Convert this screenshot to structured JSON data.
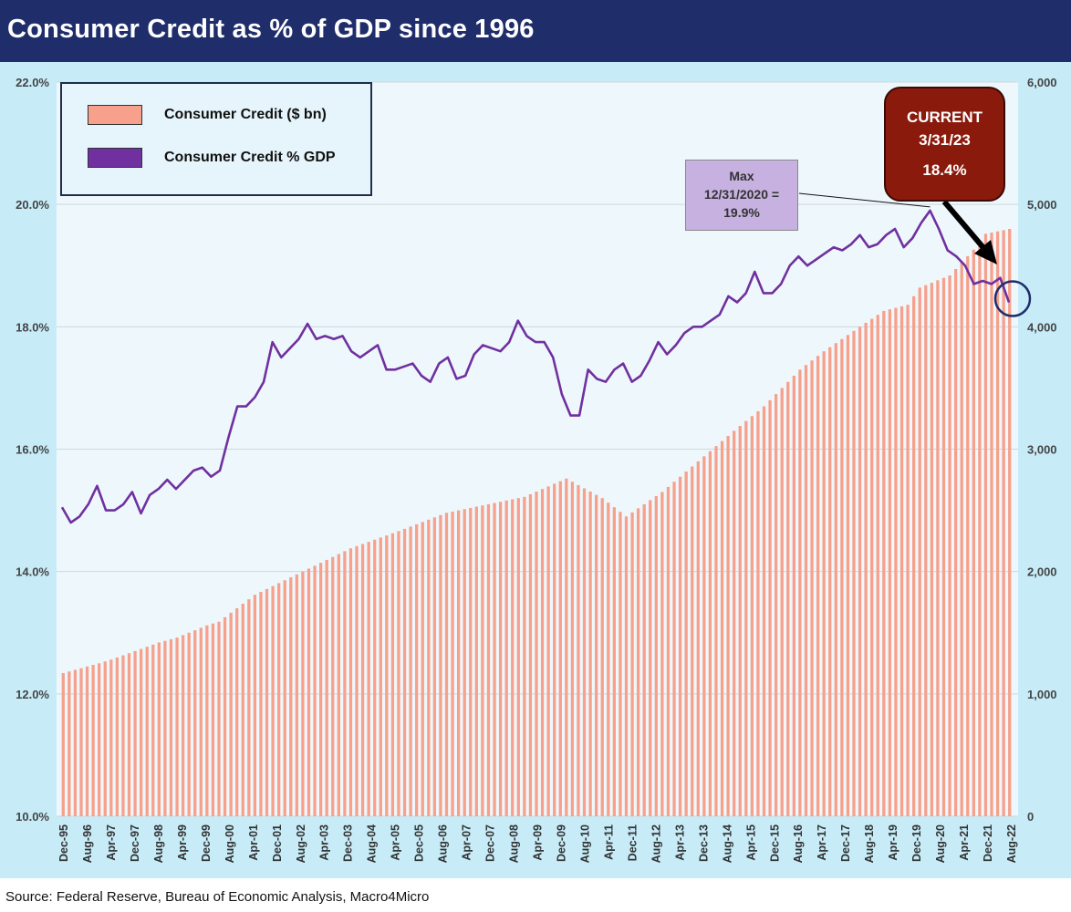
{
  "title": "Consumer Credit as % of GDP since 1996",
  "source": "Source: Federal Reserve, Bureau of Economic Analysis, Macro4Micro",
  "legend": {
    "bar_label": "Consumer Credit ($ bn)",
    "line_label": "Consumer Credit % GDP"
  },
  "annotations": {
    "max": {
      "line1": "Max",
      "line2": "12/31/2020 =",
      "line3": "19.9%"
    },
    "current": {
      "line1": "CURRENT",
      "line2": "3/31/23",
      "line3": "18.4%"
    }
  },
  "colors": {
    "bar": "#f7a08b",
    "line": "#7030a0",
    "title_bg": "#1f2d6b",
    "plot_bg": "#eef8fc",
    "outer_bg": "#c7ecf8",
    "current_bg": "#8a1a0b",
    "max_bg": "#c6b1e0"
  },
  "chart_data": {
    "type": "bar+line",
    "title": "Consumer Credit as % of GDP since 1996",
    "x_ticks": [
      "Dec-95",
      "Aug-96",
      "Apr-97",
      "Dec-97",
      "Aug-98",
      "Apr-99",
      "Dec-99",
      "Aug-00",
      "Apr-01",
      "Dec-01",
      "Aug-02",
      "Apr-03",
      "Dec-03",
      "Aug-04",
      "Apr-05",
      "Dec-05",
      "Aug-06",
      "Apr-07",
      "Dec-07",
      "Aug-08",
      "Apr-09",
      "Dec-09",
      "Aug-10",
      "Apr-11",
      "Dec-11",
      "Aug-12",
      "Apr-13",
      "Dec-13",
      "Aug-14",
      "Apr-15",
      "Dec-15",
      "Aug-16",
      "Apr-17",
      "Dec-17",
      "Aug-18",
      "Apr-19",
      "Dec-19",
      "Aug-20",
      "Apr-21",
      "Dec-21",
      "Aug-22"
    ],
    "left_axis": {
      "label": "Consumer Credit % GDP",
      "min": 10,
      "max": 22,
      "ticks": [
        "10.0%",
        "12.0%",
        "14.0%",
        "16.0%",
        "18.0%",
        "20.0%",
        "22.0%"
      ]
    },
    "right_axis": {
      "label": "Consumer Credit ($ bn)",
      "min": 0,
      "max": 6000,
      "ticks": [
        "0",
        "1,000",
        "2,000",
        "3,000",
        "4,000",
        "5,000",
        "6,000"
      ]
    },
    "series": [
      {
        "name": "Consumer Credit ($ bn)",
        "type": "bar",
        "axis": "right",
        "anchors": [
          [
            0,
            1170
          ],
          [
            6,
            1250
          ],
          [
            8,
            1280
          ],
          [
            12,
            1350
          ],
          [
            16,
            1420
          ],
          [
            19,
            1460
          ],
          [
            24,
            1560
          ],
          [
            26,
            1590
          ],
          [
            32,
            1810
          ],
          [
            40,
            2000
          ],
          [
            48,
            2190
          ],
          [
            56,
            2330
          ],
          [
            64,
            2480
          ],
          [
            72,
            2560
          ],
          [
            77,
            2610
          ],
          [
            84,
            2760
          ],
          [
            90,
            2600
          ],
          [
            94,
            2450
          ],
          [
            100,
            2650
          ],
          [
            106,
            2900
          ],
          [
            112,
            3150
          ],
          [
            117,
            3350
          ],
          [
            123,
            3650
          ],
          [
            127,
            3800
          ],
          [
            133,
            4000
          ],
          [
            137,
            4130
          ],
          [
            141,
            4180
          ],
          [
            143,
            4320
          ],
          [
            148,
            4420
          ],
          [
            152,
            4630
          ],
          [
            154,
            4760
          ],
          [
            158,
            4800
          ]
        ]
      },
      {
        "name": "Consumer Credit % GDP",
        "type": "line",
        "axis": "left",
        "values": [
          15.05,
          14.8,
          14.9,
          15.1,
          15.4,
          15.0,
          15.0,
          15.1,
          15.3,
          14.95,
          15.25,
          15.35,
          15.5,
          15.35,
          15.5,
          15.65,
          15.7,
          15.55,
          15.65,
          16.2,
          16.7,
          16.7,
          16.85,
          17.1,
          17.75,
          17.5,
          17.65,
          17.8,
          18.05,
          17.8,
          17.85,
          17.8,
          17.85,
          17.6,
          17.5,
          17.6,
          17.7,
          17.3,
          17.3,
          17.35,
          17.4,
          17.2,
          17.1,
          17.4,
          17.5,
          17.15,
          17.2,
          17.55,
          17.7,
          17.65,
          17.6,
          17.75,
          18.1,
          17.85,
          17.75,
          17.75,
          17.5,
          16.9,
          16.55,
          16.55,
          17.3,
          17.15,
          17.1,
          17.3,
          17.4,
          17.1,
          17.2,
          17.45,
          17.75,
          17.55,
          17.7,
          17.9,
          18.0,
          18.0,
          18.1,
          18.2,
          18.5,
          18.4,
          18.55,
          18.9,
          18.55,
          18.55,
          18.7,
          19.0,
          19.15,
          19.0,
          19.1,
          19.2,
          19.3,
          19.25,
          19.35,
          19.5,
          19.3,
          19.35,
          19.5,
          19.6,
          19.3,
          19.45,
          19.7,
          19.9,
          19.6,
          19.25,
          19.15,
          19.0,
          18.7,
          18.75,
          18.7,
          18.8,
          18.4
        ]
      }
    ],
    "max_point": {
      "date": "12/31/2020",
      "value": 19.9
    },
    "current_point": {
      "date": "3/31/23",
      "value": 18.4
    }
  }
}
